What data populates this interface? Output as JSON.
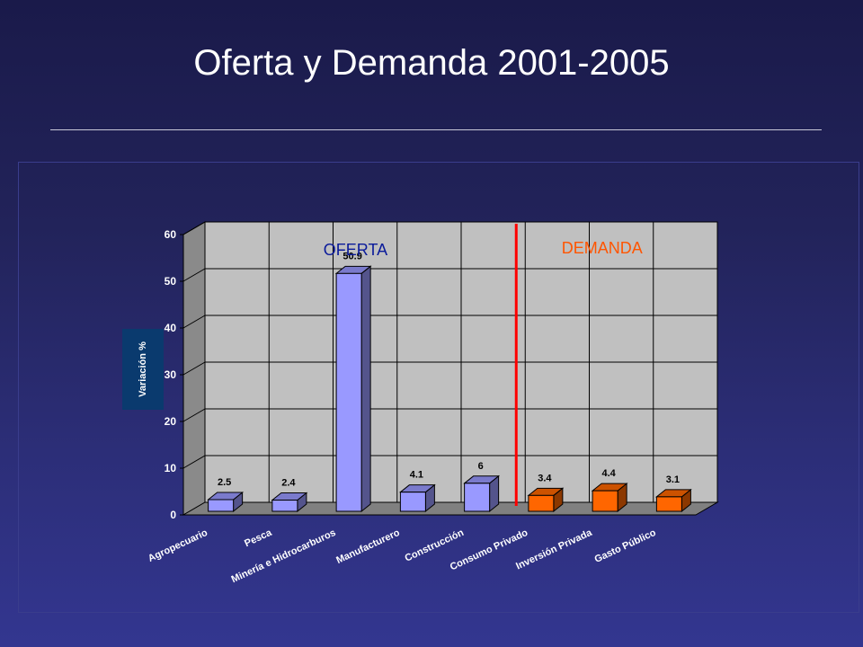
{
  "slide": {
    "title": "Oferta y Demanda 2001-2005"
  },
  "chart_data": {
    "type": "bar",
    "title": "",
    "xlabel": "",
    "ylabel": "Variación %",
    "ylim": [
      0,
      60
    ],
    "yticks": [
      0,
      10,
      20,
      30,
      40,
      50,
      60
    ],
    "grid": true,
    "categories": [
      "Agropecuario",
      "Pesca",
      "Minería e Hidrocarburos",
      "Manufacturero",
      "Construcción",
      "Consumo Privado",
      "Inversión Privada",
      "Gasto Público"
    ],
    "values": [
      2.5,
      2.4,
      50.9,
      4.1,
      6,
      3.4,
      4.4,
      3.1
    ],
    "value_labels": [
      "2.5",
      "2.4",
      "50.9",
      "4.1",
      "6",
      "3.4",
      "4.4",
      "3.1"
    ],
    "groups": [
      {
        "label": "OFERTA",
        "categories": [
          "Agropecuario",
          "Pesca",
          "Minería e Hidrocarburos",
          "Manufacturero",
          "Construcción"
        ],
        "color": "#9999ff",
        "label_color": "#0a1a9a"
      },
      {
        "label": "DEMANDA",
        "categories": [
          "Consumo Privado",
          "Inversión Privada",
          "Gasto Público"
        ],
        "color": "#ff6600",
        "label_color": "#ff5500"
      }
    ],
    "divider_color": "#ff0000",
    "plot_background": "#c0c0c0"
  }
}
